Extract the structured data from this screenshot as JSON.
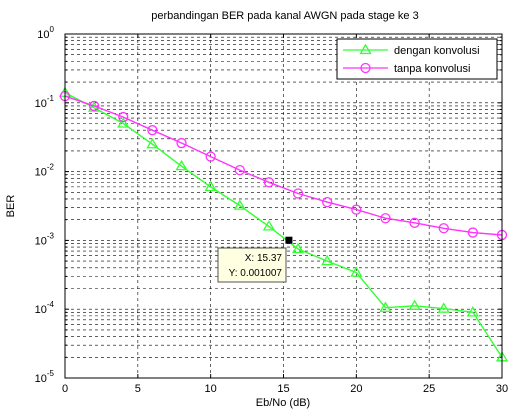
{
  "chart_data": {
    "type": "line",
    "title": "perbandingan BER pada kanal AWGN pada stage ke 3",
    "xlabel": "Eb/No (dB)",
    "ylabel": "BER",
    "xlim": [
      0,
      30
    ],
    "ylim": [
      1e-05,
      1
    ],
    "yscale": "log",
    "grid": true,
    "legend_position": "top-right",
    "x_ticks": [
      "0",
      "5",
      "10",
      "15",
      "20",
      "25",
      "30"
    ],
    "y_ticks": [
      {
        "base": "10",
        "exp": "-5"
      },
      {
        "base": "10",
        "exp": "-4"
      },
      {
        "base": "10",
        "exp": "-3"
      },
      {
        "base": "10",
        "exp": "-2"
      },
      {
        "base": "10",
        "exp": "-1"
      },
      {
        "base": "10",
        "exp": "0"
      }
    ],
    "series": [
      {
        "name": "dengan konvolusi",
        "color": "#33ff33",
        "marker": "triangle",
        "x": [
          0,
          2,
          4,
          6,
          8,
          10,
          12,
          14,
          16,
          18,
          20,
          22,
          24,
          26,
          28,
          30
        ],
        "y": [
          0.14,
          0.085,
          0.05,
          0.025,
          0.012,
          0.006,
          0.0032,
          0.0016,
          0.00075,
          0.0005,
          0.00034,
          0.000105,
          0.000112,
          0.000102,
          9e-05,
          2e-05
        ]
      },
      {
        "name": "tanpa konvolusi",
        "color": "#ff33ff",
        "marker": "circle",
        "x": [
          0,
          2,
          4,
          6,
          8,
          10,
          12,
          14,
          16,
          18,
          20,
          22,
          24,
          26,
          28,
          30
        ],
        "y": [
          0.125,
          0.09,
          0.062,
          0.04,
          0.026,
          0.0165,
          0.0105,
          0.007,
          0.0048,
          0.0036,
          0.0028,
          0.0021,
          0.0018,
          0.0015,
          0.0013,
          0.0012
        ]
      }
    ],
    "datatip": {
      "x": 15.37,
      "y": 0.001007,
      "x_text": "X: 15.37",
      "y_text": "Y: 0.001007"
    }
  }
}
